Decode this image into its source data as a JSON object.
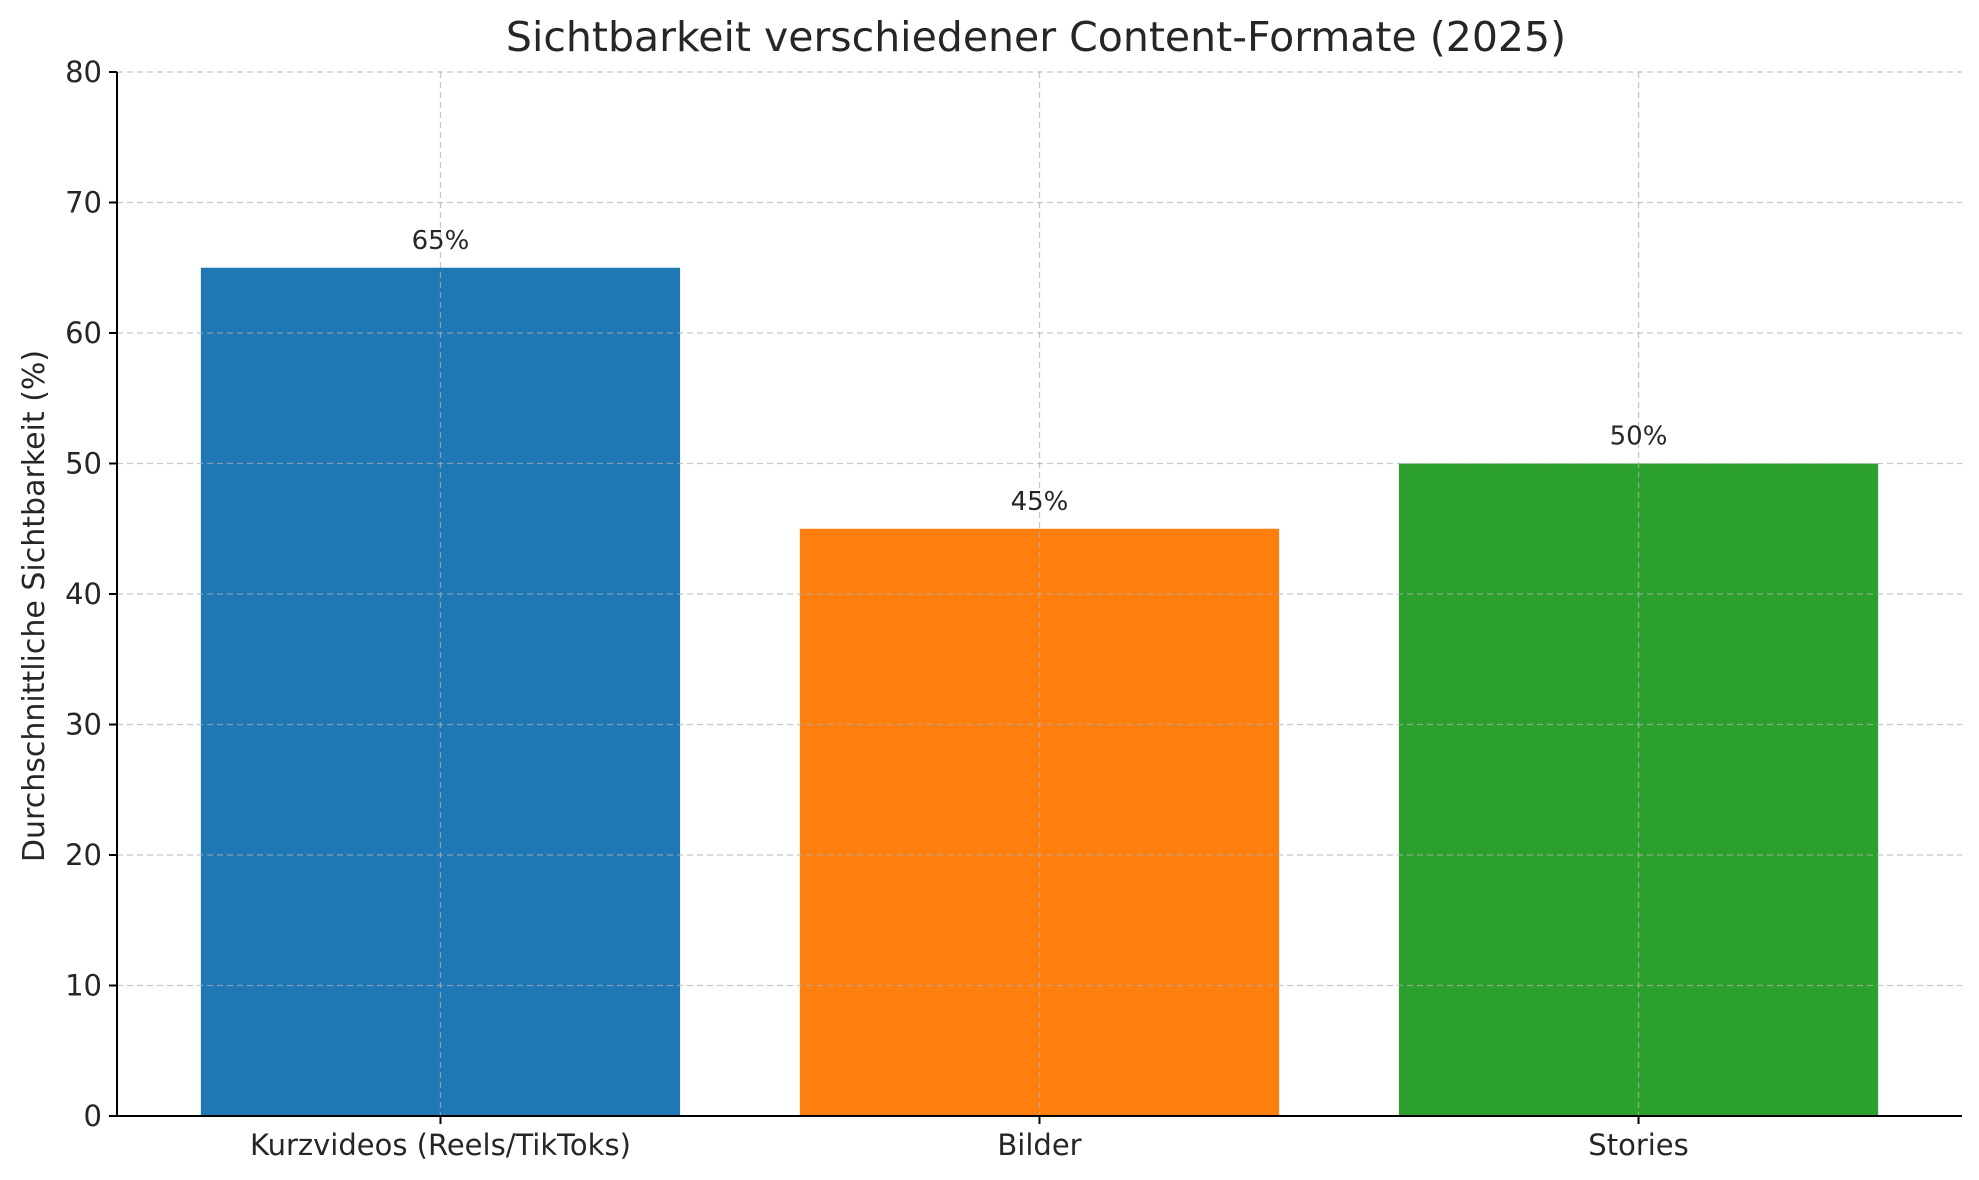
{
  "chart_data": {
    "type": "bar",
    "title": "Sichtbarkeit verschiedener Content-Formate (2025)",
    "xlabel": "",
    "ylabel": "Durchschnittliche Sichtbarkeit (%)",
    "categories": [
      "Kurzvideos (Reels/TikToks)",
      "Bilder",
      "Stories"
    ],
    "values": [
      65,
      45,
      50
    ],
    "value_labels": [
      "65%",
      "45%",
      "50%"
    ],
    "colors": [
      "#1f77b4",
      "#ff7f0e",
      "#2ca02c"
    ],
    "ylim": [
      0,
      80
    ],
    "yticks": [
      0,
      10,
      20,
      30,
      40,
      50,
      60,
      70,
      80
    ],
    "grid": true,
    "legend": "none"
  }
}
